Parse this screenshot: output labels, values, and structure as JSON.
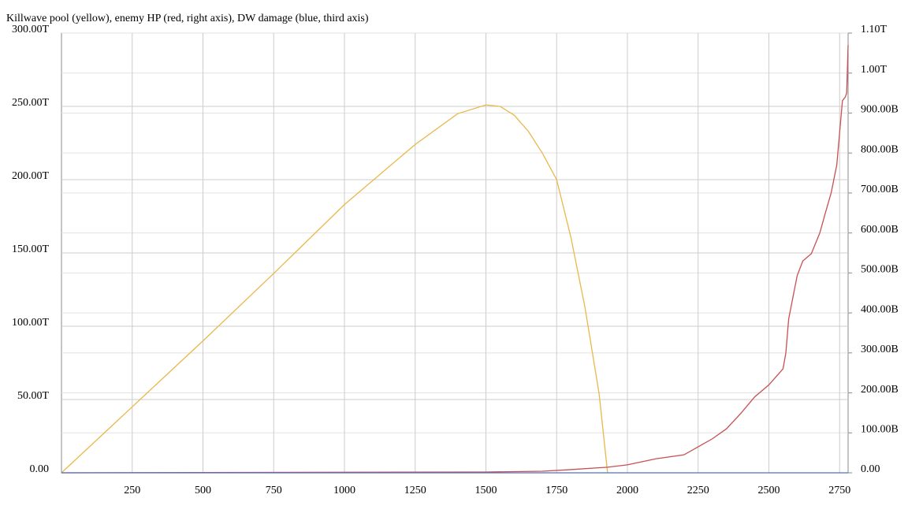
{
  "chart_data": {
    "type": "line",
    "title": "Killwave pool (yellow), enemy HP (red, right axis), DW damage (blue, third axis)",
    "xlim": [
      0,
      2780
    ],
    "xticks": [
      250,
      500,
      750,
      1000,
      1250,
      1500,
      1750,
      2000,
      2250,
      2500,
      2750
    ],
    "ylim": [
      0,
      300
    ],
    "yticks": [
      {
        "value": 0,
        "label": "0.00"
      },
      {
        "value": 50,
        "label": "50.00T"
      },
      {
        "value": 100,
        "label": "100.00T"
      },
      {
        "value": 150,
        "label": "150.00T"
      },
      {
        "value": 200,
        "label": "200.00T"
      },
      {
        "value": 250,
        "label": "250.00T"
      },
      {
        "value": 300,
        "label": "300.00T"
      }
    ],
    "y2lim": [
      0,
      1100
    ],
    "y2ticks": [
      {
        "value": 0,
        "label": "0.00"
      },
      {
        "value": 100,
        "label": "100.00B"
      },
      {
        "value": 200,
        "label": "200.00B"
      },
      {
        "value": 300,
        "label": "300.00B"
      },
      {
        "value": 400,
        "label": "400.00B"
      },
      {
        "value": 500,
        "label": "500.00B"
      },
      {
        "value": 600,
        "label": "600.00B"
      },
      {
        "value": 700,
        "label": "700.00B"
      },
      {
        "value": 800,
        "label": "800.00B"
      },
      {
        "value": 900,
        "label": "900.00B"
      },
      {
        "value": 1000,
        "label": "1.00T"
      },
      {
        "value": 1100,
        "label": "1.10T"
      }
    ],
    "grid": true,
    "series": [
      {
        "color": "#e8b84a",
        "x": [
          0,
          250,
          500,
          750,
          1000,
          1250,
          1400,
          1500,
          1550,
          1600,
          1650,
          1700,
          1750,
          1800,
          1850,
          1900,
          1930
        ],
        "values": [
          0,
          45,
          90,
          136,
          183,
          224,
          245,
          251,
          250,
          244,
          233,
          218,
          200,
          161,
          113,
          54,
          0
        ]
      },
      {
        "color": "#c85050",
        "axis": "y2",
        "x": [
          0,
          1500,
          1700,
          1800,
          1930,
          2000,
          2100,
          2200,
          2300,
          2350,
          2400,
          2450,
          2500,
          2550,
          2560,
          2570,
          2600,
          2620,
          2650,
          2680,
          2700,
          2720,
          2740,
          2760,
          2770,
          2775,
          2780
        ],
        "values": [
          0,
          2,
          4,
          8,
          14,
          20,
          35,
          45,
          85,
          110,
          148,
          190,
          220,
          260,
          300,
          385,
          493,
          530,
          548,
          600,
          651,
          700,
          770,
          931,
          940,
          950,
          1070
        ]
      },
      {
        "color": "#5070c8",
        "x": [
          0,
          2780
        ],
        "values": [
          0,
          0
        ]
      }
    ]
  }
}
